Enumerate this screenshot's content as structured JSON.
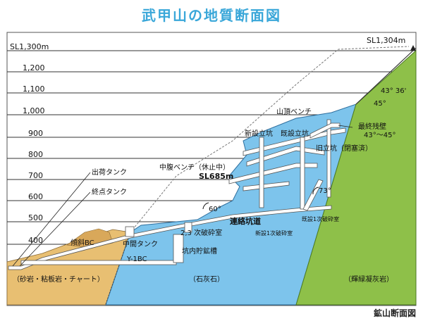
{
  "title": "武甲山の地質断面図",
  "caption": "鉱山断面図",
  "summit": "SL1,304m",
  "levels": [
    "SL1,300m",
    "1,200",
    "1,100",
    "1,000",
    "900",
    "800",
    "700",
    "600",
    "500",
    "400"
  ],
  "rocks": {
    "sandstone": "（砂岩・粘板岩・チャート）",
    "limestone": "（石灰石）",
    "tuff": "（輝緑凝灰岩）"
  },
  "labels": {
    "summit_bench": "山頂ベンチ",
    "new_shaft": "新設立坑",
    "existing_shaft": "既設立坑",
    "final_wall": "最終残壁",
    "final_wall_angle": "43°～45°",
    "old_shaft": "旧立坑（閉塞済）",
    "mid_bench": "中腹ベンチ（休止中）",
    "sl685": "SL685m",
    "angle_60": "60°",
    "angle_73": "73°",
    "angle_45": "45°",
    "angle_43": "43° 36'",
    "connecting_tunnel": "連絡坑道",
    "crusher_23": "2,3 次破砕室",
    "crusher_new": "新設1次破砕室",
    "crusher_existing": "既設1次破砕室",
    "mid_tank": "中間タンク",
    "storage": "坑内貯鉱槽",
    "y1bc": "Y-1BC",
    "incline": "傾斜BC",
    "ship_tank": "出荷タンク",
    "end_tank": "終点タンク"
  },
  "colors": {
    "sandstone": "#e8bf72",
    "limestone": "#7dc4ec",
    "tuff": "#8ec049",
    "title": "#3aa7d9"
  }
}
